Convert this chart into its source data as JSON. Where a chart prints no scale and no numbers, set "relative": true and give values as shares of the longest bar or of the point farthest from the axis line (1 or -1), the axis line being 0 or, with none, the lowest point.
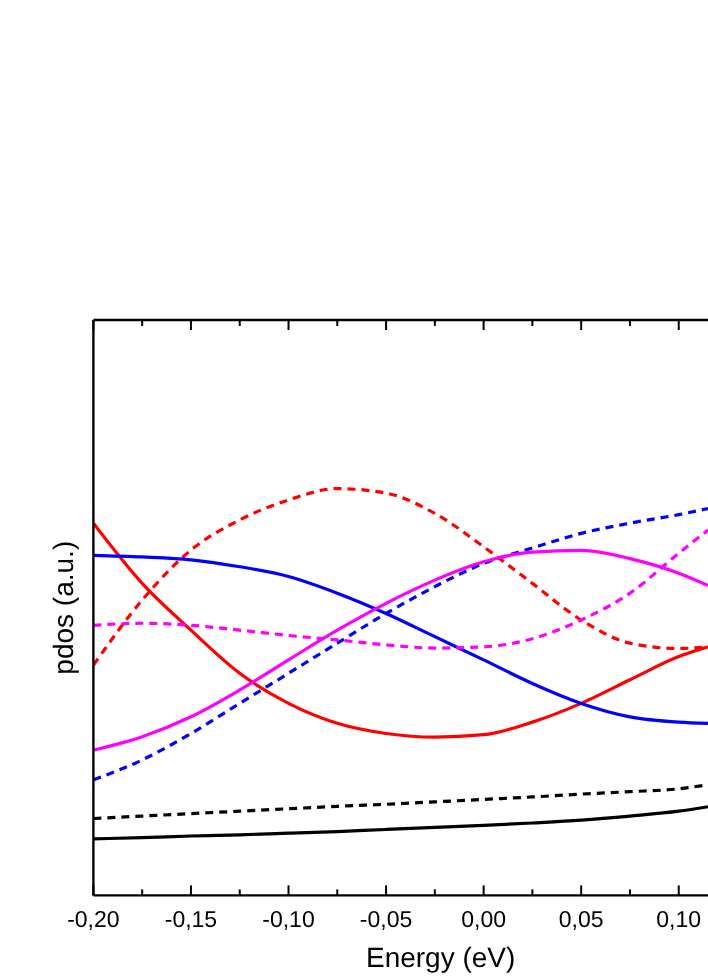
{
  "chart_data": {
    "type": "line",
    "relative": true,
    "xlabel": "Energy (eV)",
    "ylabel": "pdos (a.u.)",
    "x": [
      -0.2,
      -0.175,
      -0.15,
      -0.125,
      -0.1,
      -0.075,
      -0.05,
      -0.025,
      0,
      0.025,
      0.05,
      0.075,
      0.1,
      0.115
    ],
    "xlim": [
      -0.2,
      0.115
    ],
    "xticks": [
      {
        "value": -0.2,
        "label": "-0,20"
      },
      {
        "value": -0.175,
        "label": null
      },
      {
        "value": -0.15,
        "label": "-0,15"
      },
      {
        "value": -0.125,
        "label": null
      },
      {
        "value": -0.1,
        "label": "-0,10"
      },
      {
        "value": -0.075,
        "label": null
      },
      {
        "value": -0.05,
        "label": "-0,05"
      },
      {
        "value": -0.025,
        "label": null
      },
      {
        "value": 0,
        "label": "0,00"
      },
      {
        "value": 0.025,
        "label": null
      },
      {
        "value": 0.05,
        "label": "0,05"
      },
      {
        "value": 0.075,
        "label": null
      },
      {
        "value": 0.1,
        "label": "0,10"
      }
    ],
    "tick_labels": "x",
    "grid": false,
    "marker": "none",
    "series": [
      {
        "color": "#000000",
        "line_style": "solid",
        "values": [
          0.139,
          0.142,
          0.146,
          0.149,
          0.153,
          0.157,
          0.162,
          0.167,
          0.172,
          0.178,
          0.185,
          0.195,
          0.207,
          0.218
        ]
      },
      {
        "color": "#000000",
        "line_style": "dashed",
        "values": [
          0.189,
          0.195,
          0.201,
          0.207,
          0.213,
          0.219,
          0.224,
          0.23,
          0.236,
          0.242,
          0.249,
          0.255,
          0.262,
          0.272
        ]
      },
      {
        "color": "#ff0000",
        "line_style": "solid",
        "values": [
          0.915,
          0.767,
          0.652,
          0.546,
          0.472,
          0.423,
          0.398,
          0.389,
          0.395,
          0.426,
          0.472,
          0.53,
          0.587,
          0.611
        ]
      },
      {
        "color": "#ff0000",
        "line_style": "dashed",
        "values": [
          0.566,
          0.726,
          0.849,
          0.923,
          0.972,
          1,
          0.989,
          0.939,
          0.857,
          0.767,
          0.677,
          0.62,
          0.607,
          0.611
        ]
      },
      {
        "color": "#0000ff",
        "line_style": "solid",
        "values": [
          0.836,
          0.832,
          0.825,
          0.808,
          0.784,
          0.743,
          0.693,
          0.636,
          0.579,
          0.521,
          0.472,
          0.439,
          0.426,
          0.423
        ]
      },
      {
        "color": "#0000ff",
        "line_style": "dashed",
        "values": [
          0.284,
          0.333,
          0.398,
          0.472,
          0.546,
          0.62,
          0.693,
          0.759,
          0.816,
          0.854,
          0.89,
          0.915,
          0.936,
          0.951
        ]
      },
      {
        "color": "#ff00ff",
        "line_style": "solid",
        "values": [
          0.357,
          0.39,
          0.439,
          0.505,
          0.579,
          0.652,
          0.718,
          0.775,
          0.82,
          0.844,
          0.848,
          0.828,
          0.792,
          0.762
        ]
      },
      {
        "color": "#ff00ff",
        "line_style": "dashed",
        "values": [
          0.664,
          0.669,
          0.664,
          0.652,
          0.639,
          0.628,
          0.616,
          0.608,
          0.611,
          0.631,
          0.677,
          0.743,
          0.841,
          0.898
        ]
      }
    ]
  }
}
